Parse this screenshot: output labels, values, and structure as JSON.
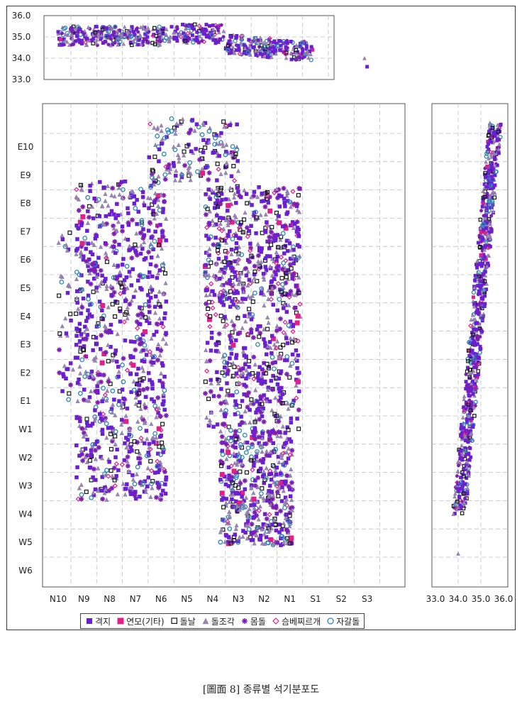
{
  "chart_data": {
    "type": "scatter",
    "caption": "[圖面 8] 종류별 석기분포도",
    "legend": [
      {
        "key": "gyeokji",
        "label": "격지",
        "marker": "filled-square",
        "color": "#6a1fd0"
      },
      {
        "key": "yeonmo",
        "label": "연모(기타)",
        "marker": "filled-square",
        "color": "#e0208a"
      },
      {
        "key": "dolnal",
        "label": "돌날",
        "marker": "open-square",
        "color": "#1a1a1a"
      },
      {
        "key": "doljogak",
        "label": "돌조각",
        "marker": "triangle",
        "color": "#9a86b4"
      },
      {
        "key": "momdol",
        "label": "몸돌",
        "marker": "star",
        "color": "#7a1fb0"
      },
      {
        "key": "seumbe",
        "label": "슴베찌르개",
        "marker": "open-diamond",
        "color": "#e0208a"
      },
      {
        "key": "jagaldol",
        "label": "자갈돌",
        "marker": "open-circle",
        "color": "#2d86b8"
      }
    ],
    "main": {
      "x_tick_labels": [
        "N10",
        "N9",
        "N8",
        "N7",
        "N6",
        "N5",
        "N4",
        "N3",
        "N2",
        "N1",
        "S1",
        "S2",
        "S3"
      ],
      "y_tick_labels": [
        "E10",
        "E9",
        "E8",
        "E7",
        "E6",
        "E5",
        "E4",
        "E3",
        "E2",
        "E1",
        "W1",
        "W2",
        "W3",
        "W4",
        "W5",
        "W6"
      ],
      "grid": true
    },
    "top_profile": {
      "y_tick_labels": [
        "36.0",
        "35.0",
        "34.0",
        "33.0"
      ],
      "ylim": [
        33.0,
        36.0
      ],
      "grid": true
    },
    "side_profile": {
      "x_tick_labels": [
        "33.0",
        "34.0",
        "35.0",
        "36.0"
      ],
      "xlim": [
        33.0,
        36.0
      ],
      "grid": true
    },
    "clusters": [
      {
        "region": "main",
        "x_range": [
          9.3,
          5.8
        ],
        "y_range": [
          2.5,
          13.8
        ],
        "count": 900,
        "mix": "dense-west"
      },
      {
        "region": "main",
        "x_range": [
          4.3,
          0.6
        ],
        "y_range": [
          9.5,
          13.6
        ],
        "count": 500,
        "mix": "north-block"
      },
      {
        "region": "main",
        "x_range": [
          4.3,
          0.6
        ],
        "y_range": [
          5.0,
          9.5
        ],
        "count": 380,
        "mix": "middle"
      },
      {
        "region": "main",
        "x_range": [
          3.7,
          0.9
        ],
        "y_range": [
          0.9,
          5.0
        ],
        "count": 470,
        "mix": "south"
      },
      {
        "region": "main",
        "x_range": [
          6.5,
          3.0
        ],
        "y_range": [
          13.8,
          16.0
        ],
        "count": 160,
        "mix": "sparse-north"
      },
      {
        "region": "main",
        "x_range": [
          10.0,
          9.0
        ],
        "y_range": [
          6.0,
          12.0
        ],
        "count": 50,
        "mix": "sparse-edge"
      }
    ]
  }
}
